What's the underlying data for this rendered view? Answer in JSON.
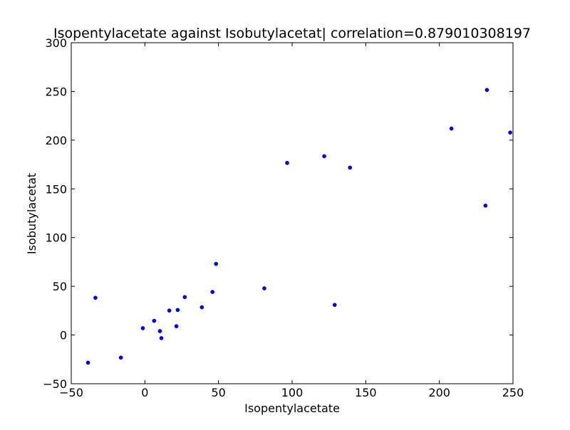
{
  "chart_data": {
    "type": "scatter",
    "title": "Isopentylacetate against Isobutylacetat| correlation=0.879010308197",
    "xlabel": "Isopentylacetate",
    "ylabel": "Isobutylacetat",
    "xlim": [
      -50,
      250
    ],
    "ylim": [
      -50,
      300
    ],
    "xticks": [
      -50,
      0,
      50,
      100,
      150,
      200,
      250
    ],
    "yticks": [
      -50,
      0,
      50,
      100,
      150,
      200,
      250,
      300
    ],
    "grid": false,
    "marker_color": "#0000ff",
    "points": [
      {
        "x": -38.6,
        "y": -28.4
      },
      {
        "x": -33.6,
        "y": 38.2
      },
      {
        "x": -16.3,
        "y": -23.2
      },
      {
        "x": -1.4,
        "y": 7.0
      },
      {
        "x": 6.3,
        "y": 14.6
      },
      {
        "x": 10.2,
        "y": 4.0
      },
      {
        "x": 11.2,
        "y": -3.2
      },
      {
        "x": 16.6,
        "y": 25.1
      },
      {
        "x": 21.4,
        "y": 9.0
      },
      {
        "x": 22.3,
        "y": 25.7
      },
      {
        "x": 27.1,
        "y": 38.9
      },
      {
        "x": 38.7,
        "y": 28.5
      },
      {
        "x": 45.9,
        "y": 44.2
      },
      {
        "x": 48.3,
        "y": 73.0
      },
      {
        "x": 81.1,
        "y": 47.9
      },
      {
        "x": 96.6,
        "y": 176.6
      },
      {
        "x": 121.8,
        "y": 183.5
      },
      {
        "x": 128.9,
        "y": 30.9
      },
      {
        "x": 139.3,
        "y": 171.8
      },
      {
        "x": 208.2,
        "y": 211.9
      },
      {
        "x": 231.3,
        "y": 132.8
      },
      {
        "x": 232.3,
        "y": 251.5
      },
      {
        "x": 248.1,
        "y": 207.8
      }
    ]
  }
}
